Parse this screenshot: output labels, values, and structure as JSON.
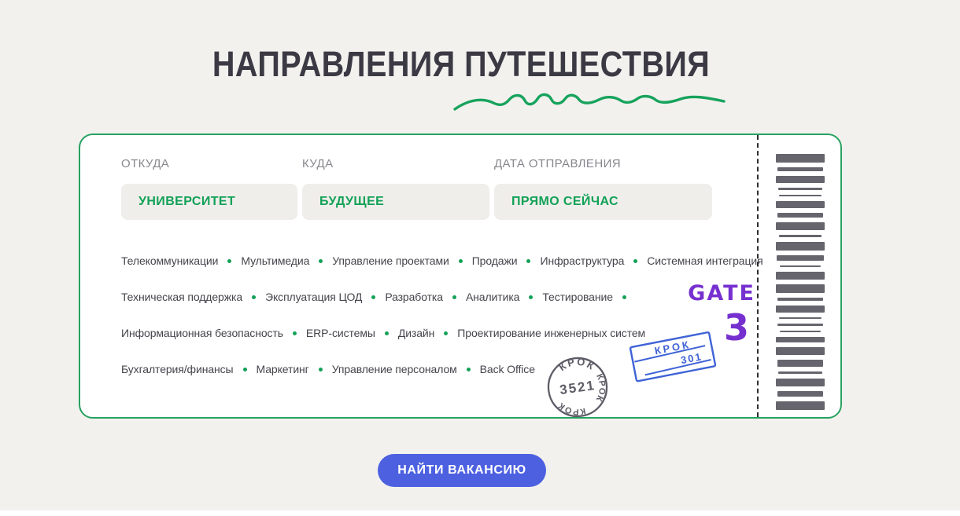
{
  "header": {
    "title": "НАПРАВЛЕНИЯ ПУТЕШЕСТВИЯ"
  },
  "colors": {
    "background": "#f2f1ee",
    "accent_green": "#12a156",
    "ticket_border_green": "#27a261",
    "gate_purple": "#7630cf",
    "stamp_blue": "#3f63d6",
    "stamp_gray": "#5d5c66",
    "button_blue": "#4c60e0",
    "title_dark": "#3b3a44"
  },
  "ticket": {
    "fields": [
      {
        "label": "ОТКУДА",
        "value": "УНИВЕРСИТЕТ"
      },
      {
        "label": "КУДА",
        "value": "БУДУЩЕЕ"
      },
      {
        "label": "ДАТА ОТПРАВЛЕНИЯ",
        "value": "ПРЯМО СЕЙЧАС"
      }
    ],
    "tag_rows": [
      {
        "items": [
          "Телекоммуникации",
          "Мультимедиа",
          "Управление проектами",
          "Продажи",
          "Инфраструктура",
          "Системная интеграция"
        ],
        "trailing_dot": false
      },
      {
        "items": [
          "Техническая поддержка",
          "Эксплуатация ЦОД",
          "Разработка",
          "Аналитика",
          "Тестирование"
        ],
        "trailing_dot": true
      },
      {
        "items": [
          "Информационная безопасность",
          "ERP-системы",
          "Дизайн",
          "Проектирование инженерных систем"
        ],
        "trailing_dot": false
      },
      {
        "items": [
          "Бухгалтерия/финансы",
          "Маркетинг",
          "Управление персоналом",
          "Back Office"
        ],
        "trailing_dot": false
      }
    ],
    "gate": {
      "label": "GATE",
      "number": "3"
    },
    "round_stamp": {
      "top": "КРОК",
      "center": "3521",
      "left": "КРОК",
      "right": "КРОК"
    },
    "rect_stamp": {
      "line1": "КРОК",
      "line2": "301"
    },
    "barcode": {
      "bars": [
        {
          "h": 11,
          "w": 100
        },
        {
          "h": 5,
          "w": 95
        },
        {
          "h": 9,
          "w": 100
        },
        {
          "h": 3,
          "w": 90
        },
        {
          "h": 2,
          "w": 86
        },
        {
          "h": 9,
          "w": 100
        },
        {
          "h": 6,
          "w": 93
        },
        {
          "h": 10,
          "w": 100
        },
        {
          "h": 3,
          "w": 88
        },
        {
          "h": 11,
          "w": 100
        },
        {
          "h": 7,
          "w": 96
        },
        {
          "h": 2,
          "w": 85
        },
        {
          "h": 10,
          "w": 100
        },
        {
          "h": 11,
          "w": 100
        },
        {
          "h": 4,
          "w": 92
        },
        {
          "h": 9,
          "w": 100
        },
        {
          "h": 2,
          "w": 87
        },
        {
          "h": 3,
          "w": 94
        },
        {
          "h": 2,
          "w": 84
        },
        {
          "h": 7,
          "w": 100
        },
        {
          "h": 10,
          "w": 100
        },
        {
          "h": 9,
          "w": 95
        },
        {
          "h": 3,
          "w": 89
        },
        {
          "h": 10,
          "w": 100
        },
        {
          "h": 7,
          "w": 93
        },
        {
          "h": 11,
          "w": 100
        }
      ]
    }
  },
  "cta": {
    "label": "НАЙТИ ВАКАНСИЮ"
  }
}
